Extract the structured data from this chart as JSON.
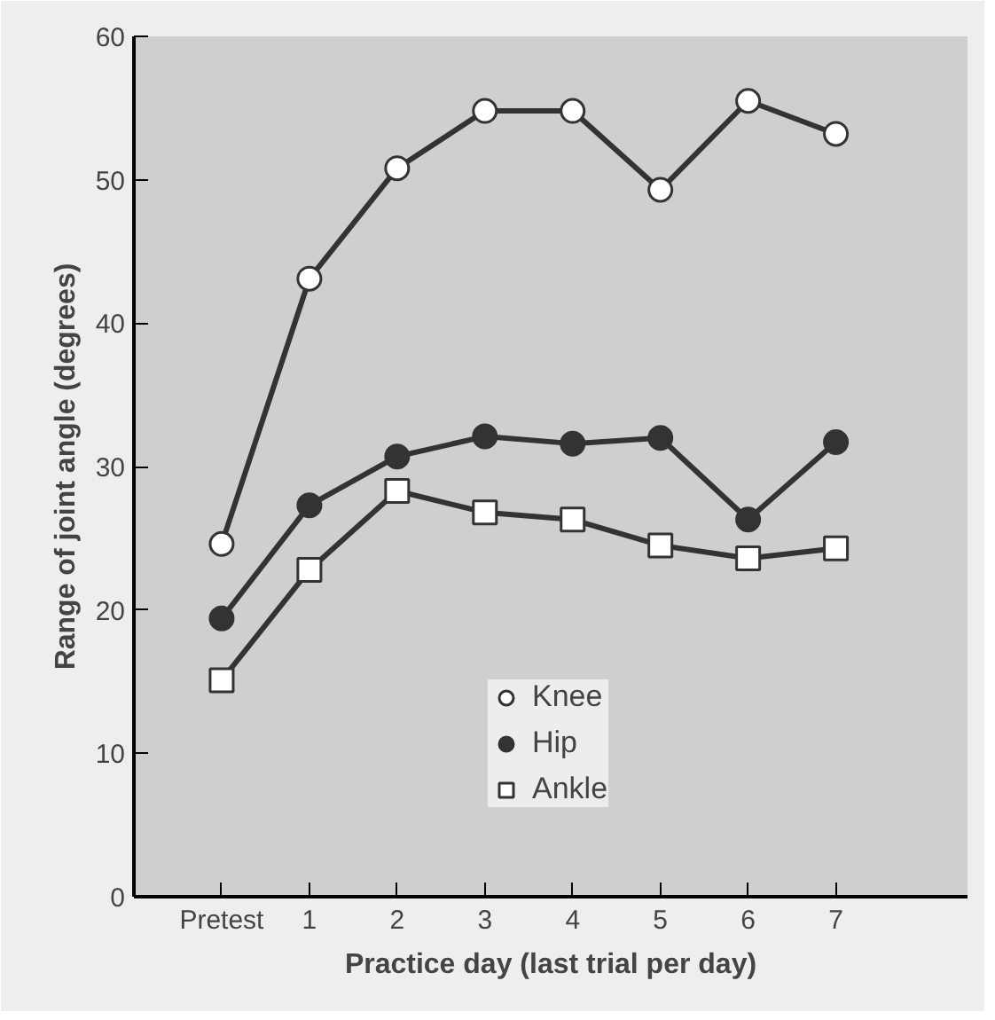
{
  "chart_data": {
    "type": "line",
    "xlabel": "Practice day (last trial per day)",
    "ylabel": "Range of joint angle (degrees)",
    "categories": [
      "Pretest",
      "1",
      "2",
      "3",
      "4",
      "5",
      "6",
      "7"
    ],
    "ylim": [
      0,
      60
    ],
    "yticks": [
      0,
      10,
      20,
      30,
      40,
      50,
      60
    ],
    "grid": false,
    "legend": "bottom",
    "line_style": "solid",
    "series": [
      {
        "name": "Knee",
        "color": "#ffffff",
        "marker": "circle",
        "values": [
          24.6,
          43.1,
          50.8,
          54.8,
          54.8,
          49.3,
          55.5,
          53.2
        ]
      },
      {
        "name": "Hip",
        "color": "#333333",
        "marker": "circle",
        "values": [
          19.4,
          27.3,
          30.7,
          32.1,
          31.6,
          32.0,
          26.3,
          31.7
        ]
      },
      {
        "name": "Ankle",
        "color": "#ffffff",
        "marker": "square",
        "values": [
          15.1,
          22.8,
          28.3,
          26.8,
          26.3,
          24.5,
          23.6,
          24.3
        ]
      }
    ]
  }
}
